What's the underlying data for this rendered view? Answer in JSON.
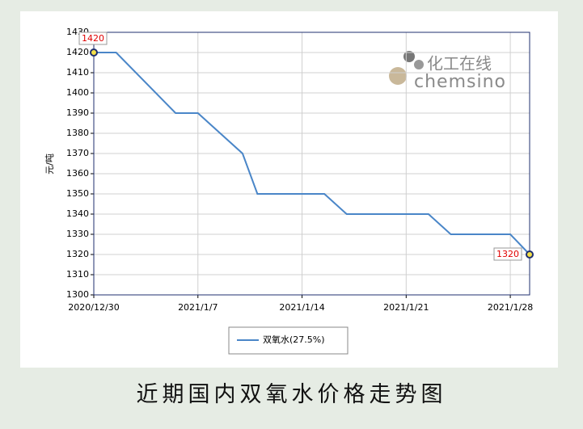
{
  "chart_data": {
    "type": "line",
    "caption": "近期国内双氧水价格走势图",
    "ylabel": "元/吨",
    "logo": [
      "化工在线",
      "chemsino"
    ],
    "x": [
      0,
      1.5,
      5.5,
      7,
      10,
      11,
      15.5,
      17,
      22.5,
      24,
      28,
      29.3
    ],
    "series": [
      {
        "name": "双氧水(27.5%)",
        "color": "#4a86c8",
        "values": [
          1420,
          1420,
          1390,
          1390,
          1370,
          1350,
          1350,
          1340,
          1340,
          1330,
          1330,
          1320
        ]
      }
    ],
    "annotations": [
      "1420",
      "1320"
    ],
    "xlim": [
      0,
      29.3
    ],
    "xticks": [
      {
        "value": 0,
        "label": "2020/12/30"
      },
      {
        "value": 7,
        "label": "2021/1/7"
      },
      {
        "value": 14,
        "label": "2021/1/14"
      },
      {
        "value": 21,
        "label": "2021/1/21"
      },
      {
        "value": 28,
        "label": "2021/1/28"
      }
    ],
    "ylim": [
      1300,
      1430
    ],
    "yticks": [
      1300,
      1310,
      1320,
      1330,
      1340,
      1350,
      1360,
      1370,
      1380,
      1390,
      1400,
      1410,
      1420,
      1430
    ],
    "grid": true
  }
}
